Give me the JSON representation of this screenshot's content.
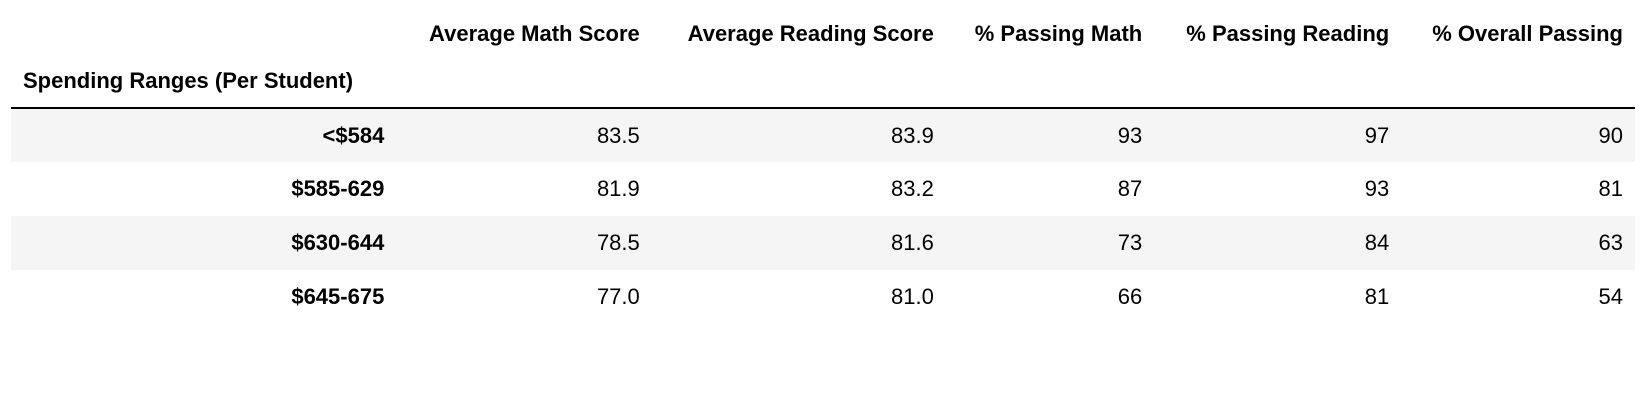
{
  "table": {
    "index_name": "Spending Ranges (Per Student)",
    "columns": [
      "Average Math Score",
      "Average Reading Score",
      "% Passing Math",
      "% Passing Reading",
      "% Overall Passing"
    ],
    "rows": [
      {
        "label": "<$584",
        "cells": [
          "83.5",
          "83.9",
          "93",
          "97",
          "90"
        ]
      },
      {
        "label": "$585-629",
        "cells": [
          "81.9",
          "83.2",
          "87",
          "93",
          "81"
        ]
      },
      {
        "label": "$630-644",
        "cells": [
          "78.5",
          "81.6",
          "73",
          "84",
          "63"
        ]
      },
      {
        "label": "$645-675",
        "cells": [
          "77.0",
          "81.0",
          "66",
          "81",
          "54"
        ]
      }
    ]
  }
}
